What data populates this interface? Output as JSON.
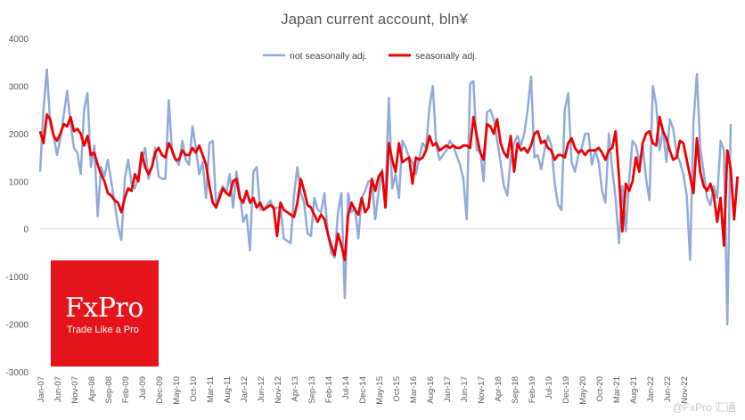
{
  "chart_data": {
    "type": "line",
    "title": "Japan current account, bln¥",
    "ylim": [
      -3000,
      4000
    ],
    "yticks": [
      4000,
      3000,
      2000,
      1000,
      0,
      -1000,
      -2000,
      -3000
    ],
    "ytick_labels": [
      "4000",
      "3000",
      "2000",
      "1000",
      "0",
      "-1000",
      "-2000",
      "-3000"
    ],
    "xtick_labels": [
      "Jan-07",
      "Jun-07",
      "Nov-07",
      "Apr-08",
      "Sep-08",
      "Feb-09",
      "Jul-09",
      "Dec-09",
      "May-10",
      "Oct-10",
      "Mar-11",
      "Aug-11",
      "Jan-12",
      "Jun-12",
      "Nov-12",
      "Apr-13",
      "Sep-13",
      "Feb-14",
      "Jul-14",
      "Dec-14",
      "May-15",
      "Oct-15",
      "Mar-16",
      "Aug-16",
      "Jan-17",
      "Jun-17",
      "Nov-17",
      "Apr-18",
      "Sep-18",
      "Feb-19",
      "Jul-19",
      "Dec-19",
      "May-20",
      "Oct-20",
      "Mar-21",
      "Aug-21",
      "Jan-22",
      "Jun-22",
      "Nov-22"
    ],
    "legend_position": "top",
    "grid": false,
    "series": [
      {
        "name": "not seasonally adj.",
        "color": "#8faadc",
        "values": [
          1200,
          2500,
          3350,
          2200,
          1950,
          1550,
          1900,
          2400,
          2900,
          2200,
          1700,
          1600,
          1150,
          2500,
          2850,
          1300,
          1750,
          270,
          1300,
          1100,
          1450,
          1000,
          550,
          50,
          -230,
          1050,
          1450,
          950,
          850,
          1100,
          1450,
          1700,
          1050,
          1300,
          1700,
          1100,
          1050,
          1050,
          2700,
          1600,
          1450,
          1350,
          1850,
          1450,
          1350,
          2150,
          1700,
          1150,
          1400,
          650,
          1800,
          1850,
          450,
          750,
          900,
          750,
          1150,
          450,
          1200,
          750,
          150,
          300,
          -450,
          1200,
          1300,
          400,
          400,
          500,
          600,
          400,
          450,
          450,
          -200,
          -250,
          -300,
          700,
          1300,
          750,
          550,
          -100,
          -150,
          650,
          400,
          350,
          750,
          -100,
          -500,
          -600,
          350,
          750,
          -1450,
          750,
          350,
          450,
          -200,
          650,
          800,
          1000,
          1000,
          200,
          800,
          1250,
          600,
          2750,
          850,
          1150,
          650,
          1850,
          1700,
          1500,
          1400,
          1150,
          1500,
          1800,
          1700,
          2550,
          3000,
          1750,
          1450,
          1550,
          1650,
          1850,
          1750,
          1550,
          1350,
          1050,
          200,
          3050,
          3100,
          1650,
          1650,
          1000,
          2450,
          2500,
          2300,
          1850,
          1400,
          900,
          700,
          1500,
          1800,
          1950,
          1750,
          2000,
          2500,
          3200,
          1500,
          1550,
          1250,
          1650,
          1950,
          1750,
          950,
          500,
          400,
          2500,
          2850,
          1400,
          1200,
          1550,
          1700,
          2000,
          2000,
          1350,
          1650,
          1400,
          800,
          550,
          2000,
          1250,
          650,
          -300,
          900,
          -50,
          1050,
          1850,
          1750,
          1400,
          1750,
          1050,
          600,
          3000,
          2600,
          1650,
          2100,
          1400,
          2300,
          2100,
          1600,
          1400,
          1150,
          700,
          -650,
          2250,
          3250,
          1700,
          1200,
          650,
          500,
          900,
          650,
          1850,
          1650,
          -2000,
          2200
        ]
      },
      {
        "name": "seasonally adj.",
        "color": "#ee0000",
        "values": [
          2050,
          1800,
          2400,
          2300,
          1950,
          1850,
          2000,
          2200,
          2150,
          2350,
          2050,
          2100,
          2000,
          1750,
          1950,
          1550,
          1600,
          1350,
          1150,
          1000,
          750,
          700,
          600,
          550,
          350,
          650,
          850,
          800,
          1150,
          1000,
          1600,
          1300,
          1150,
          1300,
          1600,
          1700,
          1550,
          1500,
          1800,
          1650,
          1450,
          1450,
          1650,
          1550,
          1550,
          1700,
          1600,
          1750,
          1550,
          1350,
          900,
          550,
          450,
          650,
          850,
          750,
          700,
          1000,
          1050,
          650,
          550,
          800,
          550,
          650,
          450,
          550,
          400,
          450,
          500,
          450,
          -150,
          550,
          400,
          350,
          300,
          250,
          550,
          1050,
          800,
          500,
          450,
          300,
          150,
          300,
          200,
          -100,
          -350,
          -550,
          -100,
          -350,
          -650,
          300,
          550,
          400,
          300,
          650,
          350,
          450,
          1050,
          800,
          1100,
          1200,
          450,
          1800,
          1450,
          1200,
          1800,
          1400,
          1450,
          1500,
          950,
          1500,
          1450,
          1500,
          1650,
          1950,
          1750,
          1800,
          1650,
          1700,
          1750,
          1700,
          1750,
          1700,
          1700,
          1750,
          1750,
          1700,
          2350,
          1950,
          1600,
          1450,
          2200,
          2150,
          2000,
          2300,
          1800,
          1600,
          1500,
          1950,
          1200,
          1800,
          1650,
          1700,
          1600,
          1750,
          2000,
          2050,
          1800,
          1850,
          1700,
          1650,
          1450,
          1550,
          1550,
          1500,
          1800,
          1900,
          1700,
          1600,
          1650,
          1550,
          1650,
          1650,
          1650,
          1700,
          1600,
          1450,
          1650,
          1700,
          2050,
          1100,
          -50,
          950,
          800,
          1000,
          1500,
          1200,
          1800,
          2000,
          2050,
          1800,
          1750,
          2350,
          2050,
          1900,
          1650,
          1450,
          1500,
          1850,
          1800,
          1450,
          1100,
          750,
          1900,
          1200,
          900,
          800,
          950,
          700,
          150,
          650,
          -350,
          1650,
          1250,
          200,
          1100
        ]
      }
    ]
  },
  "branding": {
    "logo_name": "FxPro",
    "logo_tagline": "Trade Like a Pro",
    "watermark": "@FxPro 汇通"
  }
}
